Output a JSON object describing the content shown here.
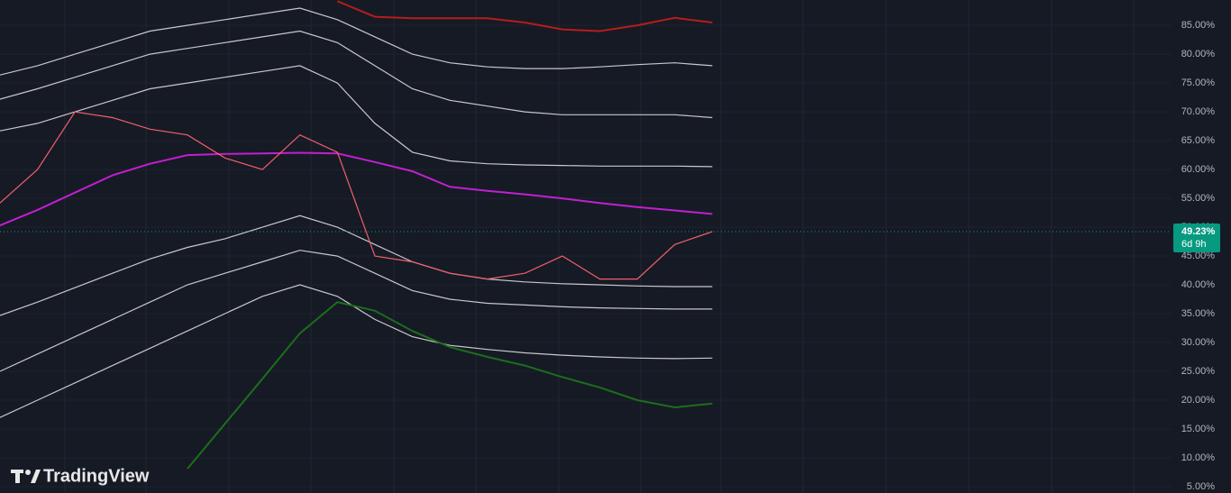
{
  "chart_data": {
    "type": "line",
    "categories": [
      null,
      null,
      null,
      null,
      null,
      null,
      null,
      null,
      null,
      null,
      null,
      null,
      null,
      null,
      null,
      null,
      null,
      null,
      null,
      null
    ],
    "series": [
      {
        "color": "#b71c1c",
        "values": [
          null,
          null,
          null,
          null,
          null,
          null,
          null,
          null,
          null,
          89.2,
          86.5,
          86.25,
          86.25,
          86.25,
          85.5,
          84.3,
          84,
          85,
          86.3,
          85.5
        ]
      },
      {
        "color": "#c8c8cc",
        "values": [
          76.4,
          78,
          80,
          82,
          84,
          85,
          86,
          87,
          88,
          86,
          83,
          80,
          78.5,
          77.8,
          77.5,
          77.5,
          77.8,
          78.2,
          78.5,
          78
        ]
      },
      {
        "color": "#c8c8cc",
        "values": [
          72.2,
          74,
          76,
          78,
          80,
          81,
          82,
          83,
          84,
          82,
          78,
          74,
          72,
          71,
          70,
          69.5,
          69.5,
          69.5,
          69.5,
          69
        ]
      },
      {
        "color": "#c8c8cc",
        "values": [
          66.7,
          68,
          70,
          72,
          74,
          75,
          76,
          77,
          78,
          75,
          68,
          63,
          61.5,
          61,
          60.8,
          60.7,
          60.6,
          60.6,
          60.6,
          60.5
        ]
      },
      {
        "color": "#c21fd1",
        "values": [
          50.3,
          53,
          56,
          59,
          61,
          62.5,
          62.7,
          62.8,
          62.9,
          62.8,
          61.3,
          59.7,
          57,
          56.3,
          55.7,
          55,
          54.2,
          53.5,
          52.9,
          52.3
        ]
      },
      {
        "color": "#c8c8cc",
        "values": [
          34.7,
          37,
          39.5,
          42,
          44.5,
          46.5,
          48,
          50,
          52,
          50,
          47,
          44,
          42,
          41,
          40.5,
          40.2,
          40,
          39.8,
          39.7,
          39.7
        ]
      },
      {
        "color": "#c8c8cc",
        "values": [
          25,
          28,
          31,
          34,
          37,
          40,
          42,
          44,
          46,
          45,
          42,
          39,
          37.5,
          36.8,
          36.5,
          36.2,
          36,
          35.9,
          35.8,
          35.8
        ]
      },
      {
        "color": "#c8c8cc",
        "values": [
          17,
          20,
          23,
          26,
          29,
          32,
          35,
          38,
          40,
          38,
          34,
          31,
          29.5,
          28.8,
          28.2,
          27.8,
          27.5,
          27.3,
          27.2,
          27.3
        ]
      },
      {
        "color": "#1b6e1b",
        "values": [
          null,
          null,
          null,
          null,
          null,
          8.1,
          15.9,
          23.7,
          31.6,
          37,
          35.5,
          32,
          29.2,
          27.5,
          26,
          24,
          22.2,
          20,
          18.75,
          19.4
        ]
      },
      {
        "color": "#f05f6a",
        "values": [
          54.2,
          60,
          70,
          69,
          67,
          66,
          62,
          60,
          66,
          63,
          45,
          44,
          42,
          41,
          42,
          45,
          41,
          41,
          47,
          49.23
        ]
      }
    ],
    "ylim": [
      3.9,
      89.4
    ],
    "yticks": [
      {
        "value": 5,
        "label": "5.00%"
      },
      {
        "value": 10,
        "label": "10.00%"
      },
      {
        "value": 15,
        "label": "15.00%"
      },
      {
        "value": 20,
        "label": "20.00%"
      },
      {
        "value": 25,
        "label": "25.00%"
      },
      {
        "value": 30,
        "label": "30.00%"
      },
      {
        "value": 35,
        "label": "35.00%"
      },
      {
        "value": 40,
        "label": "40.00%"
      },
      {
        "value": 45,
        "label": "45.00%"
      },
      {
        "value": 50,
        "label": "50.00%"
      },
      {
        "value": 55,
        "label": "55.00%"
      },
      {
        "value": 60,
        "label": "60.00%"
      },
      {
        "value": 65,
        "label": "65.00%"
      },
      {
        "value": 70,
        "label": "70.00%"
      },
      {
        "value": 75,
        "label": "75.00%"
      },
      {
        "value": 80,
        "label": "80.00%"
      },
      {
        "value": 85,
        "label": "85.00%"
      }
    ],
    "grid": true,
    "last_price": {
      "value": 49.23,
      "label": "49.23%",
      "color": "#089981"
    },
    "countdown": "6d 9h",
    "watermark": "TradingView"
  }
}
